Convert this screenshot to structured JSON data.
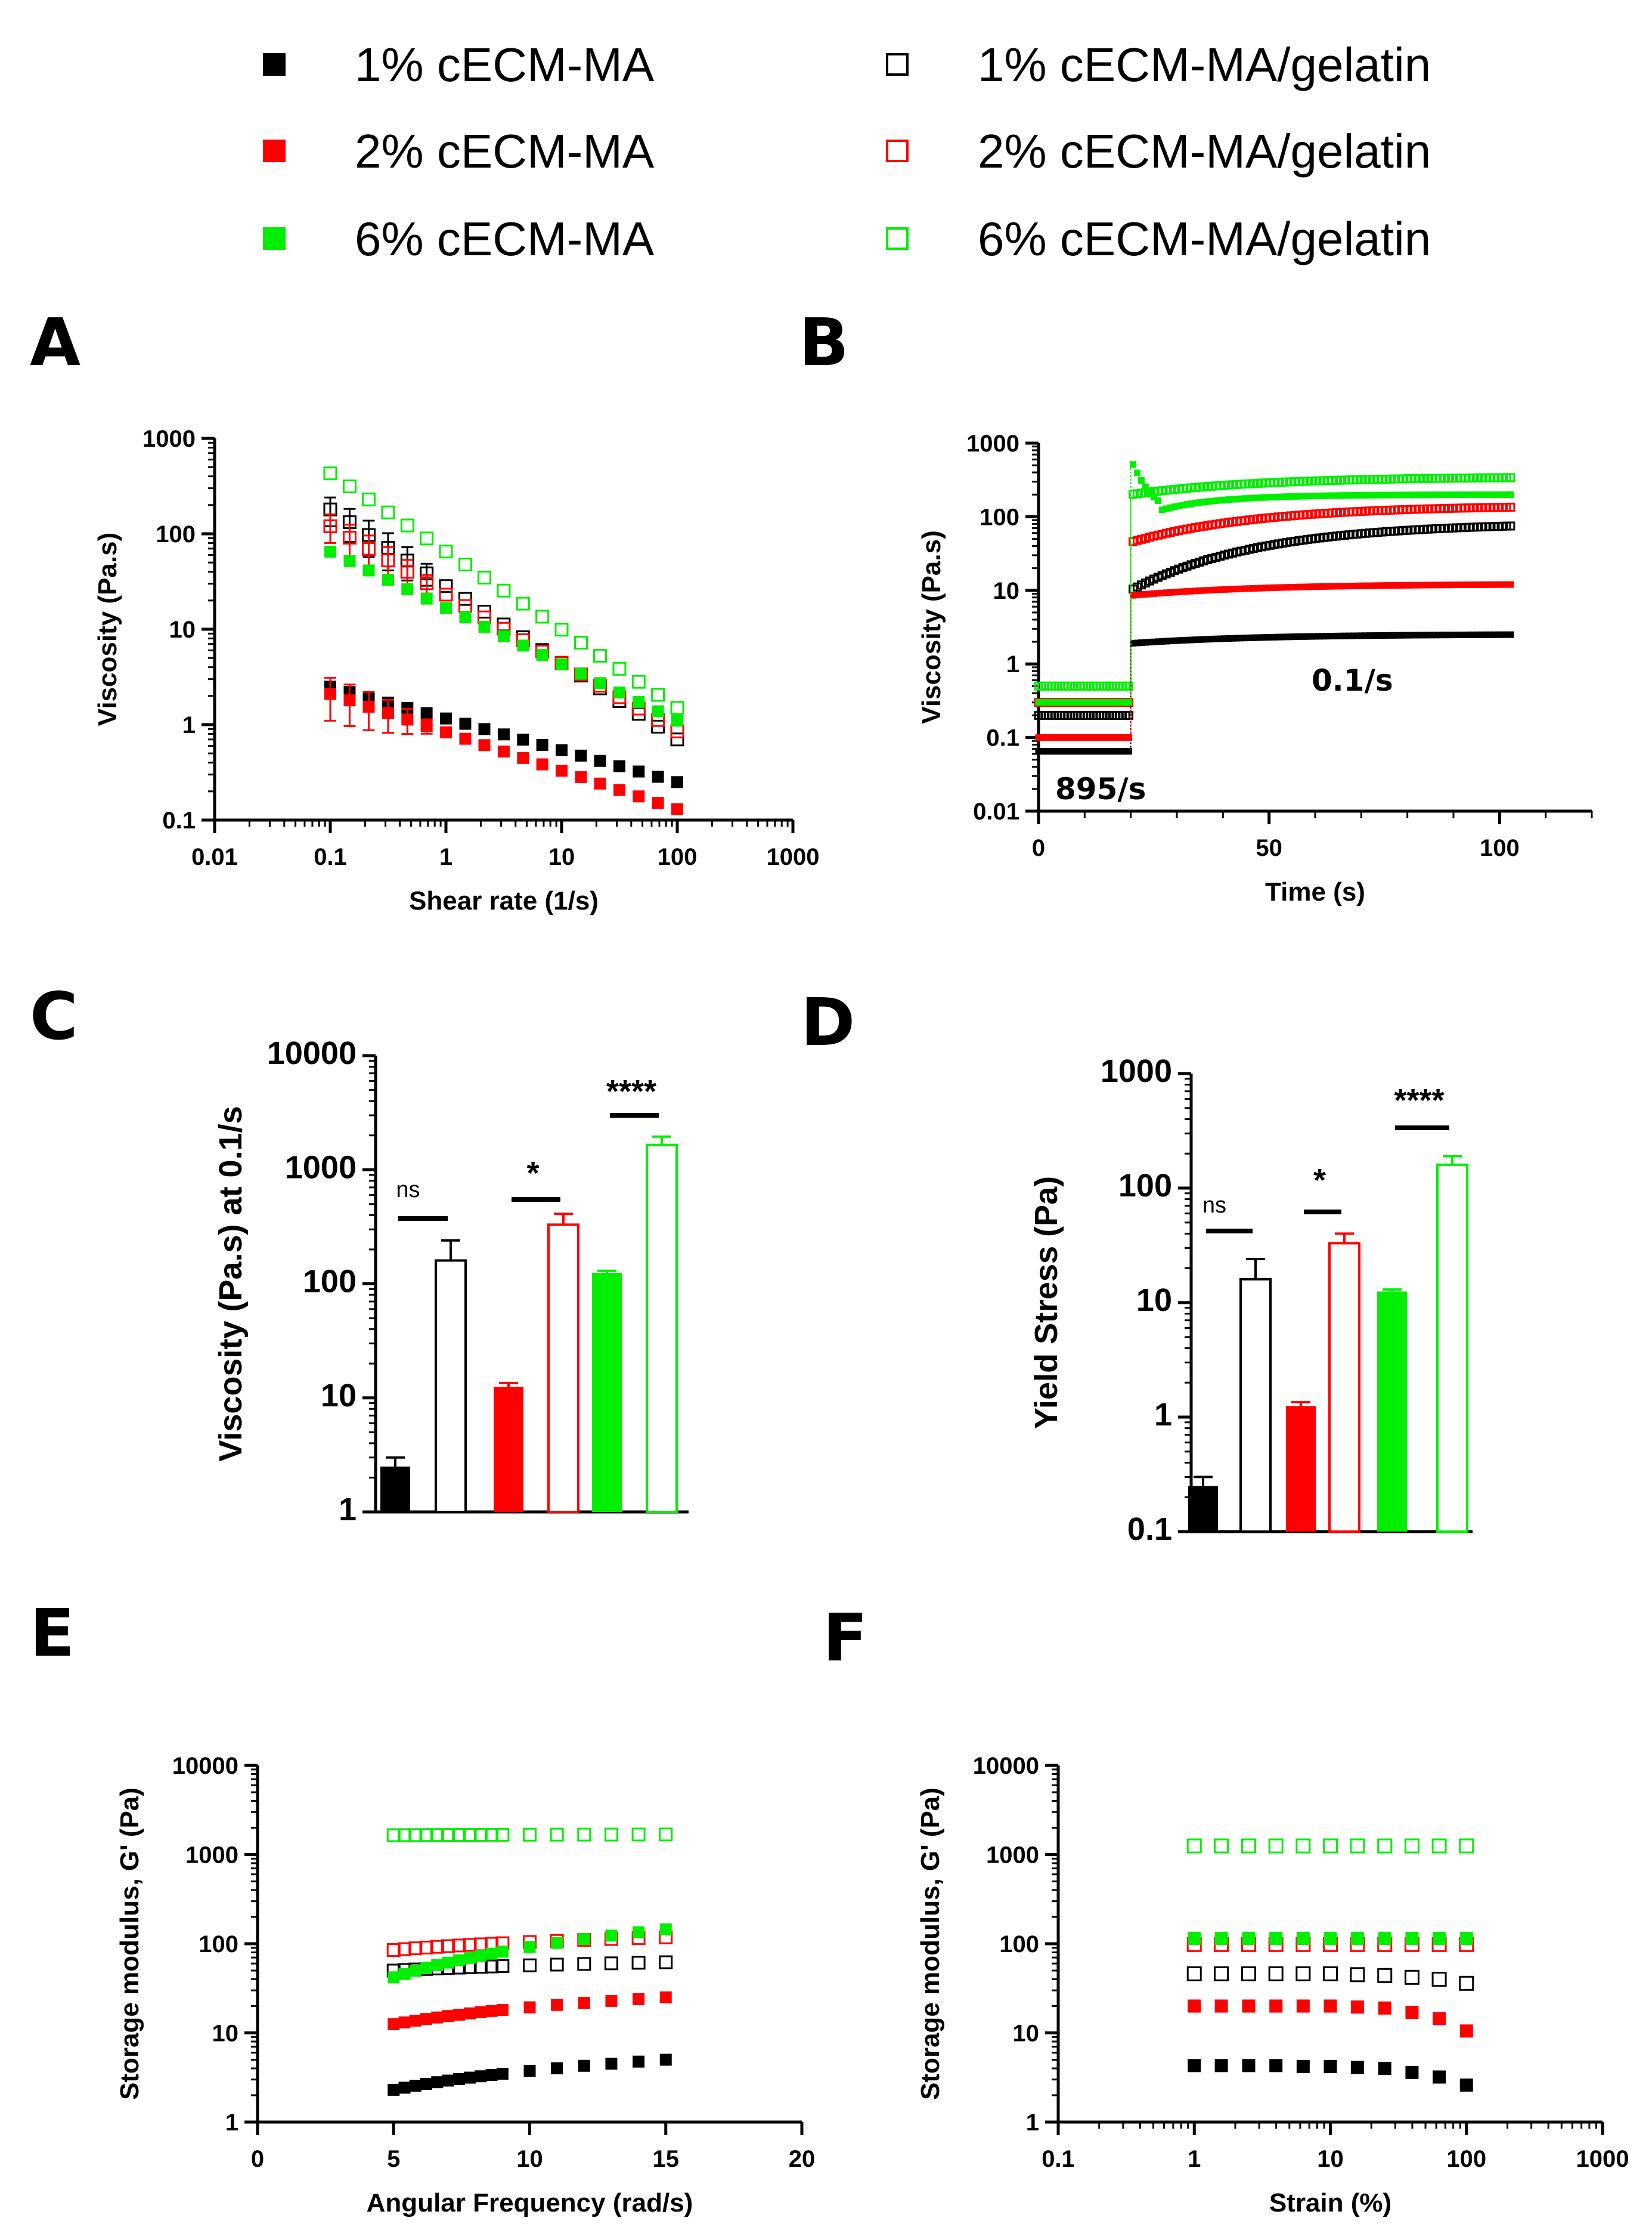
{
  "legend": [
    {
      "label": "1% cECM-MA",
      "color": "#000000",
      "filled": true
    },
    {
      "label": "2% cECM-MA",
      "color": "#ff0000",
      "filled": true
    },
    {
      "label": "6% cECM-MA",
      "color": "#00ee00",
      "filled": true
    },
    {
      "label": "1% cECM-MA/gelatin",
      "color": "#000000",
      "filled": false
    },
    {
      "label": "2% cECM-MA/gelatin",
      "color": "#ff0000",
      "filled": false
    },
    {
      "label": "6% cECM-MA/gelatin",
      "color": "#00ee00",
      "filled": false
    }
  ],
  "chart_data": [
    {
      "panel": "A",
      "type": "scatter",
      "xlabel": "Shear rate (1/s)",
      "ylabel": "Viscosity (Pa.s)",
      "xscale": "log",
      "yscale": "log",
      "xlim": [
        0.01,
        1000
      ],
      "ylim": [
        0.1,
        1000
      ],
      "xticks": [
        "0.01",
        "0.1",
        "1",
        "10",
        "100",
        "1000"
      ],
      "yticks": [
        "0.1",
        "1",
        "10",
        "100",
        "1000"
      ],
      "x": [
        0.1,
        0.147,
        0.215,
        0.316,
        0.464,
        0.681,
        1,
        1.47,
        2.15,
        3.16,
        4.64,
        6.81,
        10,
        14.7,
        21.5,
        31.6,
        46.4,
        68.1,
        100
      ],
      "series": [
        {
          "name": "1% cECM-MA",
          "start": 2.5,
          "end": 0.25
        },
        {
          "name": "2% cECM-MA",
          "start": 2.1,
          "end": 0.13,
          "error_start": 1.0
        },
        {
          "name": "6% cECM-MA",
          "start": 65,
          "end": 1.1
        },
        {
          "name": "1% cECM-MA/gelatin",
          "start": 180,
          "end": 0.7,
          "error_start": 60
        },
        {
          "name": "2% cECM-MA/gelatin",
          "start": 120,
          "end": 0.85,
          "error_start": 40
        },
        {
          "name": "6% cECM-MA/gelatin",
          "start": 430,
          "end": 1.5
        }
      ]
    },
    {
      "panel": "B",
      "type": "scatter",
      "xlabel": "Time (s)",
      "ylabel": "Viscosity (Pa.s)",
      "yscale": "log",
      "xlim": [
        0,
        120
      ],
      "ylim": [
        0.01,
        1000
      ],
      "xticks": [
        "0",
        "50",
        "100"
      ],
      "yticks": [
        "0.01",
        "0.1",
        "1",
        "10",
        "100",
        "1000"
      ],
      "annotations": [
        "895/s",
        "0.1/s"
      ],
      "step_time": 20,
      "end_time": 103,
      "series": [
        {
          "name": "1% cECM-MA",
          "high_shear": 0.065,
          "recovery_start": 1.9,
          "recovery_end": 2.5
        },
        {
          "name": "2% cECM-MA",
          "high_shear": 0.1,
          "recovery_start": 8.5,
          "recovery_end": 12
        },
        {
          "name": "6% cECM-MA",
          "high_shear": 0.3,
          "overshoot": 600,
          "recovery_start": 150,
          "recovery_end": 200
        },
        {
          "name": "1% cECM-MA/gelatin",
          "high_shear": 0.2,
          "recovery_start": 10,
          "recovery_end": 75
        },
        {
          "name": "2% cECM-MA/gelatin",
          "high_shear": 0.3,
          "recovery_start": 45,
          "recovery_end": 135
        },
        {
          "name": "6% cECM-MA/gelatin",
          "high_shear": 0.5,
          "recovery_start": 200,
          "recovery_end": 340
        }
      ]
    },
    {
      "panel": "C",
      "type": "bar",
      "ylabel": "Viscosity (Pa.s) at 0.1/s",
      "yscale": "log",
      "ylim": [
        1,
        10000
      ],
      "yticks": [
        "1",
        "10",
        "100",
        "1000",
        "10000"
      ],
      "categories": [
        "1% cECM-MA",
        "1% cECM-MA/gelatin",
        "2% cECM-MA",
        "2% cECM-MA/gelatin",
        "6% cECM-MA",
        "6% cECM-MA/gelatin"
      ],
      "values": [
        2.5,
        160,
        12.5,
        330,
        125,
        1650
      ],
      "errors": [
        0.5,
        80,
        1,
        80,
        5,
        300
      ],
      "significance": [
        "ns",
        "*",
        "****"
      ]
    },
    {
      "panel": "D",
      "type": "bar",
      "ylabel": "Yield Stress (Pa)",
      "yscale": "log",
      "ylim": [
        0.1,
        1000
      ],
      "yticks": [
        "0.1",
        "1",
        "10",
        "100",
        "1000"
      ],
      "categories": [
        "1% cECM-MA",
        "1% cECM-MA/gelatin",
        "2% cECM-MA",
        "2% cECM-MA/gelatin",
        "6% cECM-MA",
        "6% cECM-MA/gelatin"
      ],
      "values": [
        0.25,
        16,
        1.25,
        33,
        12.5,
        160
      ],
      "errors": [
        0.05,
        8,
        0.1,
        7,
        0.5,
        30
      ],
      "significance": [
        "ns",
        "*",
        "****"
      ]
    },
    {
      "panel": "E",
      "type": "scatter",
      "xlabel": "Angular Frequency (rad/s)",
      "ylabel": "Storage modulus, G' (Pa)",
      "yscale": "log",
      "xlim": [
        0,
        20
      ],
      "ylim": [
        1,
        10000
      ],
      "xticks": [
        "0",
        "5",
        "10",
        "15",
        "20"
      ],
      "yticks": [
        "1",
        "10",
        "100",
        "1000",
        "10000"
      ],
      "series": [
        {
          "name": "1% cECM-MA",
          "start": 2.3,
          "end": 5
        },
        {
          "name": "2% cECM-MA",
          "start": 12.5,
          "end": 25
        },
        {
          "name": "6% cECM-MA",
          "start": 42,
          "end": 145
        },
        {
          "name": "1% cECM-MA/gelatin",
          "start": 50,
          "end": 62
        },
        {
          "name": "2% cECM-MA/gelatin",
          "start": 85,
          "end": 118
        },
        {
          "name": "6% cECM-MA/gelatin",
          "start": 1650,
          "end": 1680
        }
      ]
    },
    {
      "panel": "F",
      "type": "scatter",
      "xlabel": "Strain (%)",
      "ylabel": "Storage modulus, G' (Pa)",
      "xscale": "log",
      "yscale": "log",
      "xlim": [
        0.1,
        1000
      ],
      "ylim": [
        1,
        10000
      ],
      "xticks": [
        "0.1",
        "1",
        "10",
        "100",
        "1000"
      ],
      "yticks": [
        "1",
        "10",
        "100",
        "1000",
        "10000"
      ],
      "x": [
        1,
        1.58,
        2.51,
        3.98,
        6.31,
        10,
        15.8,
        25.1,
        39.8,
        63.1,
        100
      ],
      "series": [
        {
          "name": "1% cECM-MA",
          "values": [
            4.3,
            4.3,
            4.3,
            4.3,
            4.2,
            4.2,
            4.1,
            4.0,
            3.6,
            3.2,
            2.6
          ]
        },
        {
          "name": "2% cECM-MA",
          "values": [
            20,
            20,
            20,
            20,
            20,
            20,
            19.5,
            19,
            17,
            14.5,
            10.5
          ]
        },
        {
          "name": "6% cECM-MA",
          "values": [
            115,
            115,
            115,
            115,
            115,
            115,
            115,
            115,
            115,
            115,
            115
          ]
        },
        {
          "name": "1% cECM-MA/gelatin",
          "values": [
            46,
            46,
            46,
            46,
            46,
            46,
            45,
            44,
            42,
            40,
            36
          ]
        },
        {
          "name": "2% cECM-MA/gelatin",
          "values": [
            98,
            98,
            98,
            98,
            98,
            98,
            98,
            98,
            98,
            98,
            98
          ]
        },
        {
          "name": "6% cECM-MA/gelatin",
          "values": [
            1250,
            1250,
            1250,
            1250,
            1250,
            1250,
            1250,
            1250,
            1250,
            1250,
            1250
          ]
        }
      ]
    }
  ]
}
